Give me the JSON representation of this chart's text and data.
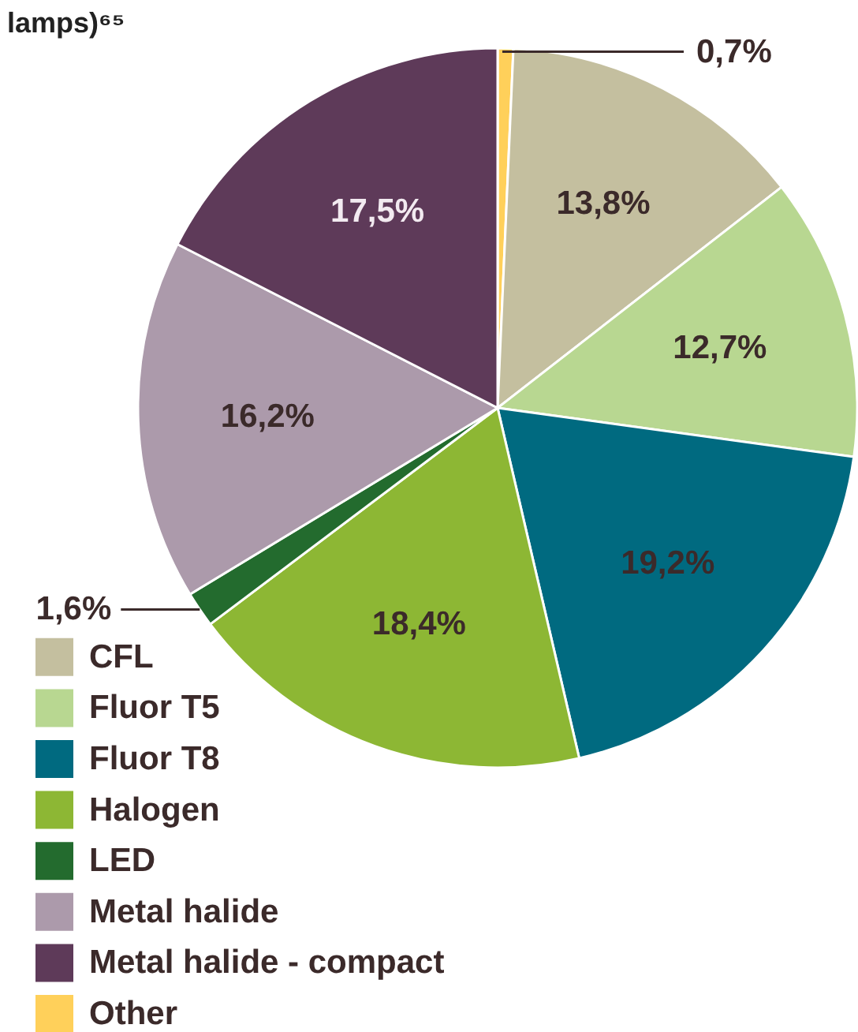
{
  "chart_data": {
    "type": "pie",
    "title": "lamps)⁶⁵",
    "categories": [
      "CFL",
      "Fluor T5",
      "Fluor T8",
      "Halogen",
      "LED",
      "Metal halide",
      "Metal halide - compact",
      "Other"
    ],
    "values": [
      13.8,
      12.7,
      19.2,
      18.4,
      1.6,
      16.2,
      17.5,
      0.7
    ],
    "colors": [
      "#c4bf9f",
      "#b8d791",
      "#006a80",
      "#8db734",
      "#236b2e",
      "#ac9aab",
      "#5e3a59",
      "#ffd05a"
    ],
    "value_labels": [
      "13,8%",
      "12,7%",
      "19,2%",
      "18,4%",
      "1,6%",
      "16,2%",
      "17,5%",
      "0,7%"
    ],
    "legend": "bottom left"
  }
}
